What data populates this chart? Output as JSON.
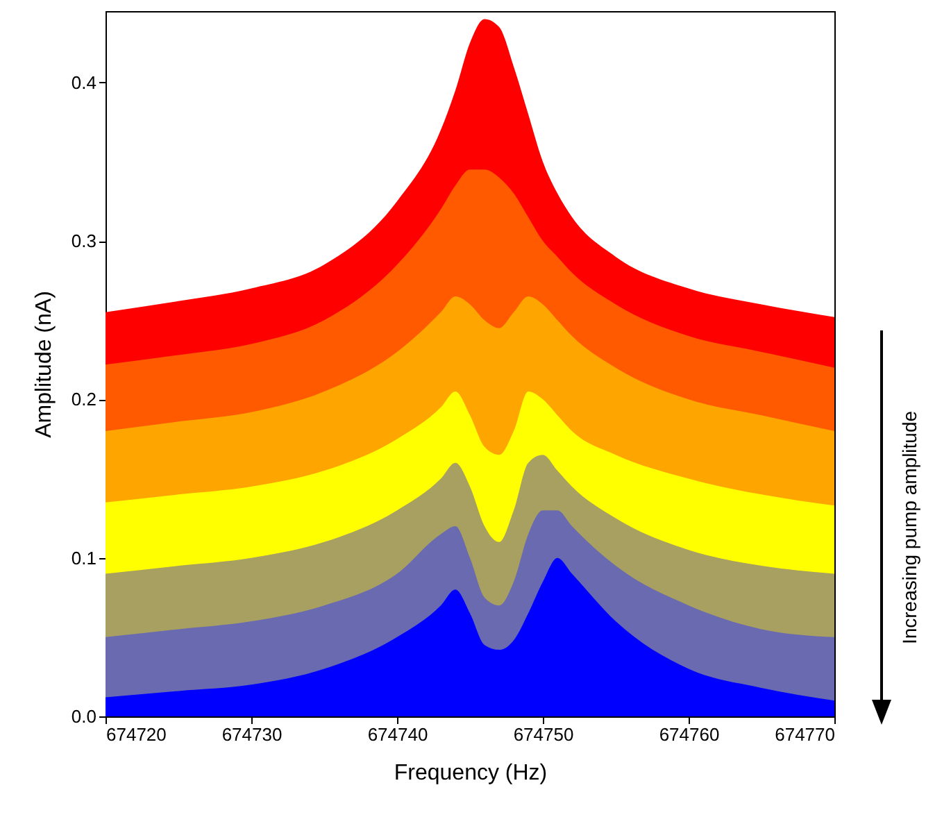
{
  "chart_data": {
    "type": "area",
    "xlabel": "Frequency (Hz)",
    "ylabel": "Amplitude (nA)",
    "annotations": [
      "Increasing pump amplitude"
    ],
    "x": [
      674720,
      674725,
      674730,
      674735,
      674740,
      674743,
      674744,
      674745,
      674746,
      674747,
      674748,
      674749,
      674750,
      674751,
      674752,
      674755,
      674760,
      674765,
      674770
    ],
    "series": [
      {
        "color": "#ff0000",
        "values": [
          0.255,
          0.262,
          0.27,
          0.285,
          0.325,
          0.37,
          0.395,
          0.425,
          0.44,
          0.435,
          0.41,
          0.38,
          0.35,
          0.33,
          0.315,
          0.29,
          0.27,
          0.26,
          0.252
        ]
      },
      {
        "color": "#ff5a00",
        "values": [
          0.222,
          0.228,
          0.235,
          0.25,
          0.285,
          0.32,
          0.335,
          0.345,
          0.345,
          0.34,
          0.33,
          0.315,
          0.3,
          0.29,
          0.28,
          0.26,
          0.24,
          0.23,
          0.22
        ]
      },
      {
        "color": "#ffa500",
        "values": [
          0.18,
          0.186,
          0.192,
          0.205,
          0.23,
          0.255,
          0.265,
          0.26,
          0.25,
          0.245,
          0.255,
          0.265,
          0.26,
          0.25,
          0.24,
          0.22,
          0.2,
          0.19,
          0.18
        ]
      },
      {
        "color": "#ffff00",
        "values": [
          0.135,
          0.14,
          0.145,
          0.155,
          0.175,
          0.195,
          0.205,
          0.19,
          0.17,
          0.165,
          0.18,
          0.205,
          0.2,
          0.19,
          0.18,
          0.165,
          0.15,
          0.14,
          0.133
        ]
      },
      {
        "color": "#a8a060",
        "values": [
          0.09,
          0.095,
          0.1,
          0.11,
          0.13,
          0.15,
          0.16,
          0.145,
          0.12,
          0.11,
          0.13,
          0.16,
          0.165,
          0.155,
          0.145,
          0.125,
          0.105,
          0.095,
          0.09
        ]
      },
      {
        "color": "#6a6ab0",
        "values": [
          0.05,
          0.055,
          0.06,
          0.07,
          0.09,
          0.115,
          0.12,
          0.1,
          0.075,
          0.07,
          0.085,
          0.115,
          0.13,
          0.13,
          0.12,
          0.095,
          0.07,
          0.055,
          0.05
        ]
      },
      {
        "color": "#0000ff",
        "values": [
          0.012,
          0.016,
          0.02,
          0.03,
          0.05,
          0.07,
          0.08,
          0.065,
          0.045,
          0.042,
          0.048,
          0.065,
          0.085,
          0.1,
          0.09,
          0.06,
          0.03,
          0.018,
          0.01
        ]
      }
    ],
    "xlim": [
      674720,
      674770
    ],
    "xticks": [
      674720,
      674730,
      674740,
      674750,
      674760,
      674770
    ],
    "ylim": [
      0,
      0.445
    ],
    "yticks": [
      {
        "value": 0,
        "label": "0.0"
      },
      0.1,
      0.2,
      0.3,
      0.4
    ]
  }
}
